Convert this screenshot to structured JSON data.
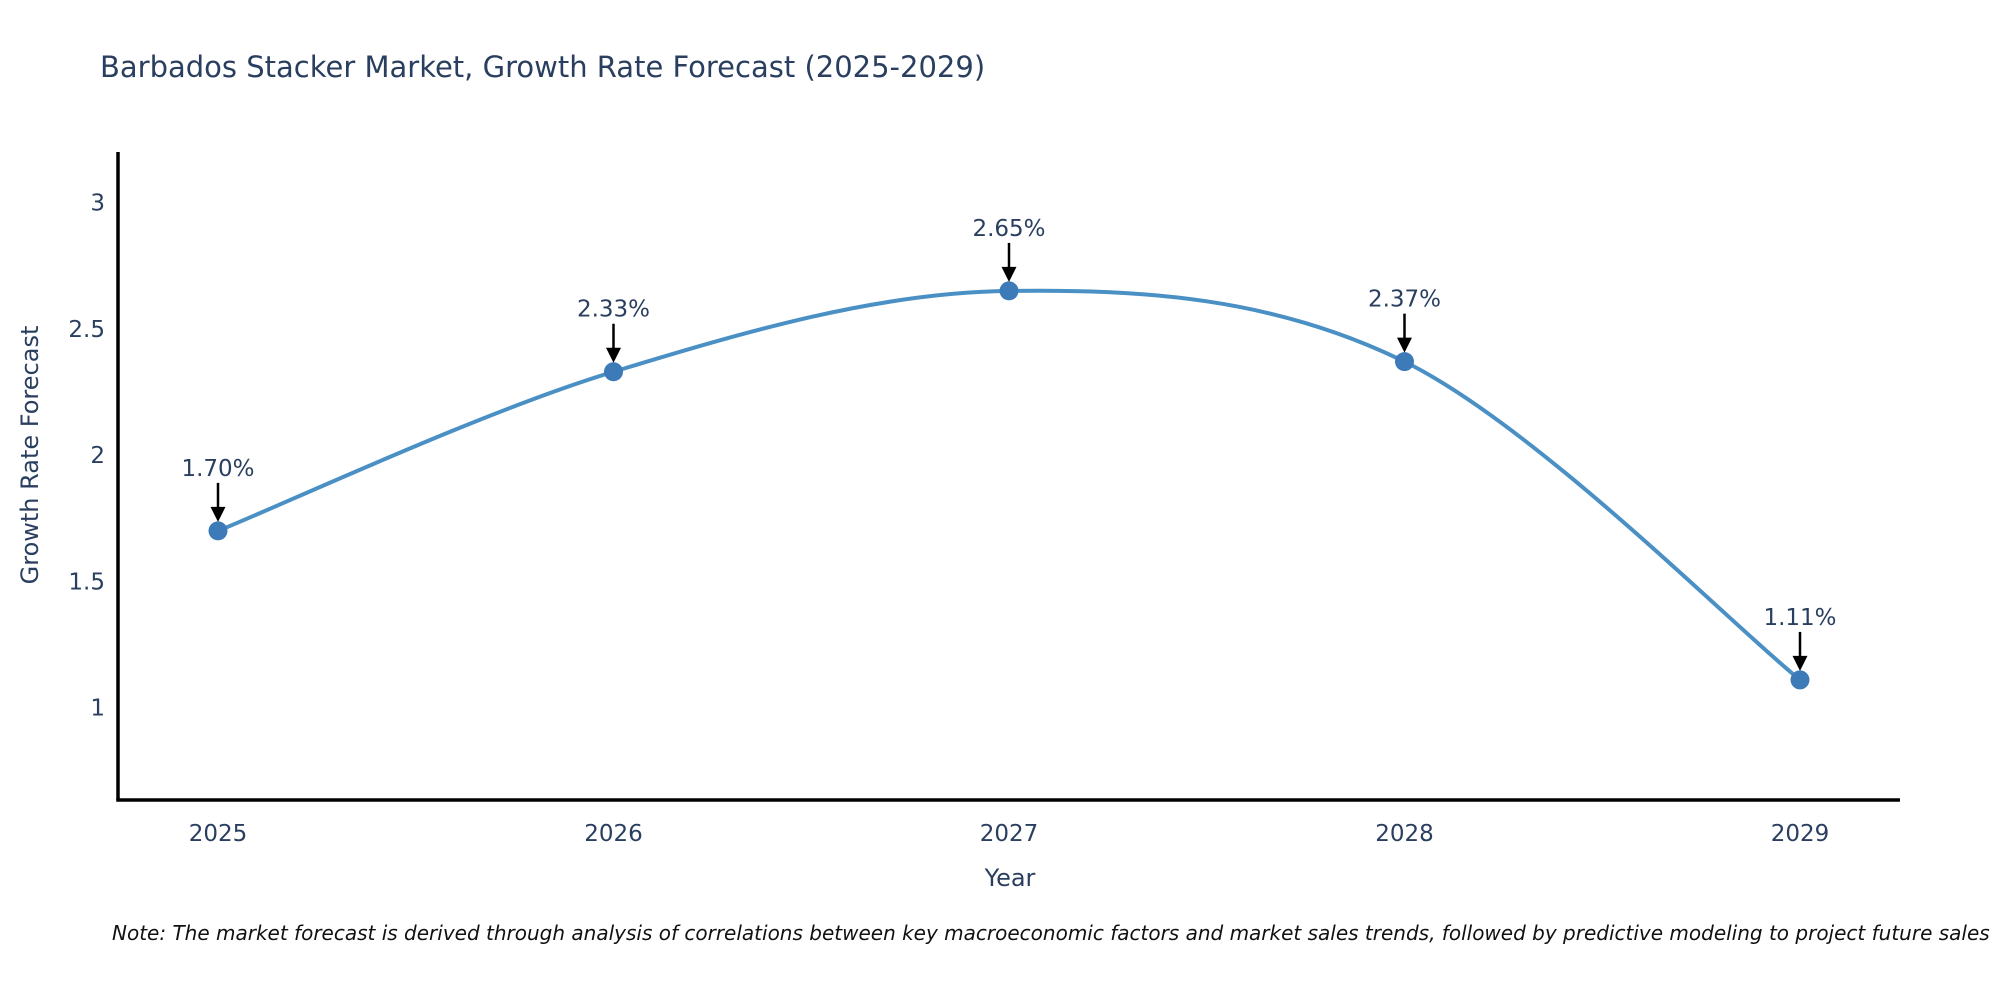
{
  "title": "Barbados Stacker Market, Growth Rate Forecast (2025-2029)",
  "note": "Note: The market forecast is derived through analysis of correlations between key macroeconomic factors and market sales trends, followed by predictive modeling to project future sales",
  "colors": {
    "text": "#2a3f5f",
    "line": "#4a90c5",
    "marker": "#3d7ab8",
    "axis_line": "#000000",
    "arrow": "#000000",
    "background": "#ffffff"
  },
  "chart_data": {
    "type": "line",
    "title": "Barbados Stacker Market, Growth Rate Forecast (2025-2029)",
    "xlabel": "Year",
    "ylabel": "Growth Rate Forecast",
    "categories": [
      "2025",
      "2026",
      "2027",
      "2028",
      "2029"
    ],
    "series": [
      {
        "name": "Growth Rate Forecast",
        "values": [
          1.7,
          2.33,
          2.65,
          2.37,
          1.11
        ],
        "point_labels": [
          "1.70%",
          "2.33%",
          "2.65%",
          "2.37%",
          "1.11%"
        ]
      }
    ],
    "yticks": [
      3,
      2.5,
      2,
      1.5,
      1
    ],
    "ylim": [
      0.63,
      3.2
    ],
    "line_shape": "spline",
    "grid": false,
    "legend_position": "none",
    "annotation_style": "value labels with downward arrows pointing at each marker"
  }
}
